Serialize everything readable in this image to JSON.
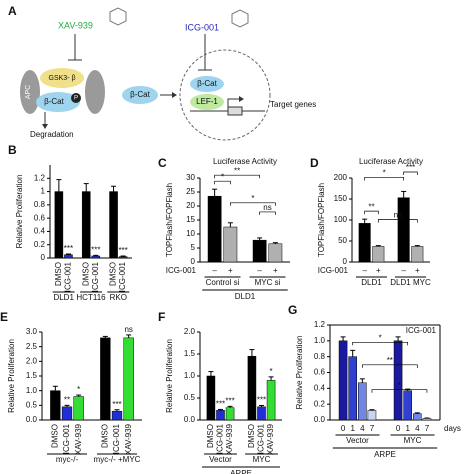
{
  "panels": {
    "A": {
      "letter": "A",
      "inhibitor1": "XAV-939",
      "inhibitor2": "ICG-001",
      "apc": "APC",
      "gsk": "GSK3- β",
      "bcat": "β-Cat",
      "p": "P",
      "degradation": "Degradation",
      "bcat2": "β-Cat",
      "bcat3": "β-Cat",
      "lef": "LEF-1",
      "target": "Target genes"
    }
  },
  "chart_data": [
    {
      "type": "bar",
      "panel": "B",
      "ylabel": "Relative Proliferation",
      "ylim": [
        0,
        1.4
      ],
      "yticks": [
        0,
        0.2,
        0.4,
        0.6,
        0.8,
        1,
        1.2
      ],
      "categories": [
        "DLD1",
        "HCT116",
        "RKO"
      ],
      "series": [
        {
          "name": "DMSO",
          "color": "#000000",
          "values": [
            1.0,
            1.0,
            1.0
          ],
          "errors": [
            0.18,
            0.12,
            0.08
          ]
        },
        {
          "name": "ICG-001",
          "color": "#1f2fd6",
          "values": [
            0.05,
            0.03,
            0.02
          ],
          "errors": [
            0.01,
            0.01,
            0.01
          ],
          "notes": [
            "***",
            "***",
            "***"
          ]
        }
      ]
    },
    {
      "type": "bar",
      "panel": "C",
      "title": "Luciferase Activity",
      "ylabel": "TOPFlash/FOPFlash",
      "ylim": [
        0,
        30
      ],
      "yticks": [
        0,
        5,
        10,
        15,
        20,
        25,
        30
      ],
      "categories": [
        "Control si",
        "MYC si"
      ],
      "xlabel": "ICG-001",
      "subgroup": "DLD1",
      "series": [
        {
          "name": "–",
          "color": "#000000",
          "values": [
            23.5,
            7.8
          ],
          "errors": [
            2.5,
            0.8
          ]
        },
        {
          "name": "+",
          "color": "#b0b0b0",
          "values": [
            12.5,
            6.5
          ],
          "errors": [
            1.5,
            0.4
          ]
        }
      ],
      "brackets": [
        {
          "text": "*",
          "a": [
            0,
            0
          ],
          "b": [
            1,
            0
          ]
        },
        {
          "text": "**",
          "a": [
            0,
            0
          ],
          "b": [
            0,
            1
          ]
        },
        {
          "text": "*",
          "a": [
            1,
            0
          ],
          "b": [
            1,
            1
          ]
        },
        {
          "text": "ns",
          "a": [
            0,
            1
          ],
          "b": [
            1,
            1
          ]
        }
      ]
    },
    {
      "type": "bar",
      "panel": "D",
      "title": "Luciferase Activity",
      "ylabel": "TOPFlash/FOPFlash",
      "ylim": [
        0,
        200
      ],
      "yticks": [
        0,
        50,
        100,
        150,
        200
      ],
      "categories": [
        "DLD1",
        "DLD1 MYC"
      ],
      "xlabel": "ICG-001",
      "series": [
        {
          "name": "–",
          "color": "#000000",
          "values": [
            92,
            153
          ],
          "errors": [
            10,
            15
          ]
        },
        {
          "name": "+",
          "color": "#b0b0b0",
          "values": [
            37,
            37
          ],
          "errors": [
            2,
            2
          ]
        }
      ],
      "brackets": [
        {
          "text": "**",
          "a": [
            0,
            0
          ],
          "b": [
            1,
            0
          ]
        },
        {
          "text": "*",
          "a": [
            0,
            0
          ],
          "b": [
            0,
            1
          ]
        },
        {
          "text": "***",
          "a": [
            0,
            1
          ],
          "b": [
            1,
            1
          ]
        },
        {
          "text": "ns",
          "a": [
            1,
            0
          ],
          "b": [
            1,
            1
          ]
        }
      ]
    },
    {
      "type": "bar",
      "panel": "E",
      "ylabel": "Relative Proliferation",
      "ylim": [
        0,
        3
      ],
      "yticks": [
        {
          "value": 0,
          "label": "0.0"
        },
        {
          "value": 0.5,
          "label": "0.5"
        },
        {
          "value": 1,
          "label": "1.0"
        },
        {
          "value": 1.5,
          "label": "1.5"
        },
        {
          "value": 2,
          "label": "2.0"
        },
        {
          "value": 2.5,
          "label": "2.5"
        },
        {
          "value": 3,
          "label": "3.0"
        }
      ],
      "categories": [
        "myc-/-",
        "myc-/- +MYC"
      ],
      "series": [
        {
          "name": "DMSO",
          "color": "#000000",
          "values": [
            1.0,
            2.8
          ],
          "errors": [
            0.15,
            0.05
          ]
        },
        {
          "name": "ICG-001",
          "color": "#1f2fd6",
          "values": [
            0.45,
            0.3
          ],
          "errors": [
            0.05,
            0.05
          ],
          "notes": [
            "**",
            "***"
          ]
        },
        {
          "name": "XAV-939",
          "color": "#33dd33",
          "values": [
            0.8,
            2.8
          ],
          "errors": [
            0.05,
            0.1
          ],
          "notes": [
            "*",
            "ns"
          ]
        }
      ]
    },
    {
      "type": "bar",
      "panel": "F",
      "ylabel": "Relative Proliferation",
      "ylim": [
        0,
        2
      ],
      "yticks": [
        {
          "value": 0,
          "label": "0.0"
        },
        {
          "value": 0.5,
          "label": "0.5"
        },
        {
          "value": 1,
          "label": "1.0"
        },
        {
          "value": 1.5,
          "label": "1.5"
        },
        {
          "value": 2,
          "label": "2.0"
        }
      ],
      "categories": [
        "Vector",
        "MYC"
      ],
      "subgroup": "ARPE",
      "series": [
        {
          "name": "DMSO",
          "color": "#000000",
          "values": [
            1.0,
            1.45
          ],
          "errors": [
            0.1,
            0.15
          ]
        },
        {
          "name": "ICG-001",
          "color": "#1f2fd6",
          "values": [
            0.22,
            0.3
          ],
          "errors": [
            0.02,
            0.03
          ],
          "notes": [
            "***",
            "***"
          ]
        },
        {
          "name": "XAV-939",
          "color": "#33dd33",
          "values": [
            0.28,
            0.9
          ],
          "errors": [
            0.03,
            0.08
          ],
          "notes": [
            "***",
            "*"
          ]
        }
      ]
    },
    {
      "type": "bar",
      "panel": "G",
      "title": "ICG-001",
      "ylabel": "Relative Proliferation",
      "ylim": [
        0,
        1.2
      ],
      "yticks": [
        {
          "value": 0,
          "label": "0.0"
        },
        {
          "value": 0.2,
          "label": "0.2"
        },
        {
          "value": 0.4,
          "label": "0.4"
        },
        {
          "value": 0.6,
          "label": "0.6"
        },
        {
          "value": 0.8,
          "label": "0.8"
        },
        {
          "value": 1,
          "label": "1.0"
        },
        {
          "value": 1.2,
          "label": "1.2"
        }
      ],
      "categories": [
        "Vector",
        "MYC"
      ],
      "xlabel": "days",
      "subgroup": "ARPE",
      "series": [
        {
          "name": "0",
          "color": "#1a1aa0",
          "values": [
            1.0,
            1.0
          ],
          "errors": [
            0.05,
            0.05
          ]
        },
        {
          "name": "1",
          "color": "#3040d0",
          "values": [
            0.8,
            0.37
          ],
          "errors": [
            0.08,
            0.02
          ]
        },
        {
          "name": "4",
          "color": "#6f88e8",
          "values": [
            0.47,
            0.08
          ],
          "errors": [
            0.05,
            0.01
          ]
        },
        {
          "name": "7",
          "color": "#c8d4f4",
          "values": [
            0.12,
            0.02
          ],
          "errors": [
            0.01,
            0.005
          ]
        }
      ],
      "brackets": [
        {
          "text": "*",
          "a": [
            1,
            0
          ],
          "b": [
            1,
            1
          ]
        },
        {
          "text": "**",
          "a": [
            2,
            0
          ],
          "b": [
            2,
            1
          ]
        },
        {
          "text": "*",
          "a": [
            3,
            0
          ],
          "b": [
            3,
            1
          ]
        }
      ]
    }
  ]
}
